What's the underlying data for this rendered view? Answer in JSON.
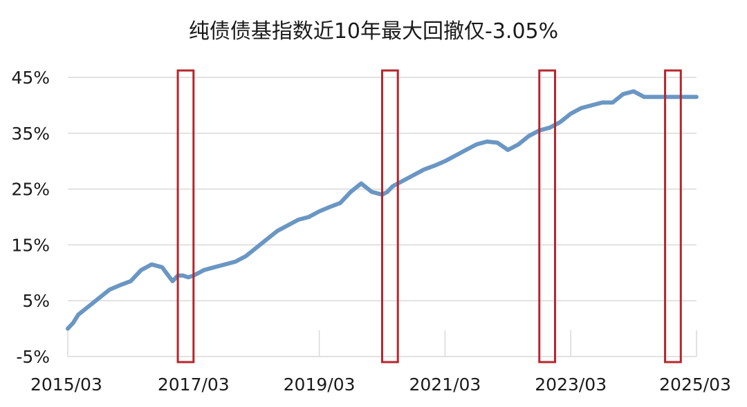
{
  "chart_data": {
    "type": "line",
    "title": "纯债债基指数近10年最大回撤仅-3.05%",
    "xlabel": "",
    "ylabel": "",
    "x_tick_labels": [
      "2015/03",
      "2017/03",
      "2019/03",
      "2021/03",
      "2023/03",
      "2025/03"
    ],
    "y_tick_labels": [
      "-5%",
      "5%",
      "15%",
      "25%",
      "35%",
      "45%"
    ],
    "ylim": [
      -5,
      45
    ],
    "xlim": [
      "2015-03",
      "2025-03"
    ],
    "grid": true,
    "legend": "none",
    "line_color": "#6a96c3",
    "highlight_color": "#b5262b",
    "series": [
      {
        "x": [
          "2015-03",
          "2015-04",
          "2015-05",
          "2015-07",
          "2015-09",
          "2015-11",
          "2016-01",
          "2016-03",
          "2016-05",
          "2016-07",
          "2016-09",
          "2016-11",
          "2016-12",
          "2017-01",
          "2017-02",
          "2017-03",
          "2017-05",
          "2017-07",
          "2017-09",
          "2017-11",
          "2018-01",
          "2018-03",
          "2018-05",
          "2018-07",
          "2018-09",
          "2018-11",
          "2019-01",
          "2019-03",
          "2019-05",
          "2019-07",
          "2019-09",
          "2019-11",
          "2020-01",
          "2020-03",
          "2020-04",
          "2020-05",
          "2020-07",
          "2020-09",
          "2020-11",
          "2021-01",
          "2021-03",
          "2021-05",
          "2021-07",
          "2021-09",
          "2021-11",
          "2022-01",
          "2022-03",
          "2022-05",
          "2022-07",
          "2022-09",
          "2022-11",
          "2022-12",
          "2023-01",
          "2023-03",
          "2023-05",
          "2023-07",
          "2023-09",
          "2023-11",
          "2024-01",
          "2024-03",
          "2024-05",
          "2024-07",
          "2024-09",
          "2024-10",
          "2024-12",
          "2025-01",
          "2025-03"
        ],
        "y": [
          0.0,
          1.0,
          2.5,
          4.0,
          5.5,
          7.0,
          7.8,
          8.5,
          10.5,
          11.5,
          11.0,
          8.5,
          9.5,
          9.5,
          9.2,
          9.5,
          10.5,
          11.0,
          11.5,
          12.0,
          13.0,
          14.5,
          16.0,
          17.5,
          18.5,
          19.5,
          20.0,
          21.0,
          21.8,
          22.5,
          24.5,
          26.0,
          24.5,
          24.0,
          24.5,
          25.5,
          26.5,
          27.5,
          28.5,
          29.2,
          30.0,
          31.0,
          32.0,
          33.0,
          33.5,
          33.3,
          32.0,
          33.0,
          34.5,
          35.5,
          36.0,
          36.5,
          37.0,
          38.5,
          39.5,
          40.0,
          40.5,
          40.5,
          42.0,
          42.5,
          41.5,
          41.5,
          41.5,
          41.5,
          41.5,
          41.5,
          41.5
        ]
      }
    ],
    "highlights": [
      {
        "x_start": "2016-12",
        "x_end": "2017-03"
      },
      {
        "x_start": "2020-03",
        "x_end": "2020-06"
      },
      {
        "x_start": "2022-09",
        "x_end": "2022-12"
      },
      {
        "x_start": "2024-09",
        "x_end": "2024-12"
      }
    ]
  }
}
